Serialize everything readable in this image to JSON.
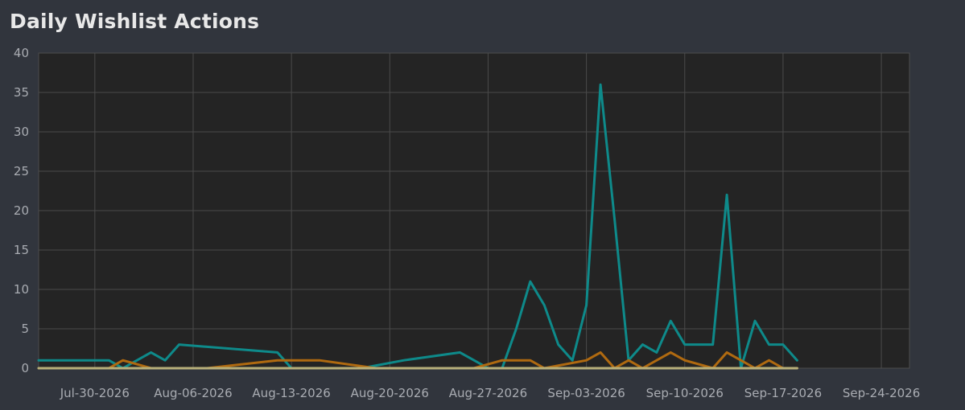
{
  "chart_data": {
    "type": "line",
    "title": "Daily Wishlist Actions",
    "xlabel": "",
    "ylabel": "",
    "x_ticks": [
      "Jul-30-2026",
      "Aug-06-2026",
      "Aug-13-2026",
      "Aug-20-2026",
      "Aug-27-2026",
      "Sep-03-2026",
      "Sep-10-2026",
      "Sep-17-2026",
      "Sep-24-2026"
    ],
    "y_ticks": [
      0,
      5,
      10,
      15,
      20,
      25,
      30,
      35,
      40
    ],
    "xlim": [
      "2026-07-26",
      "2026-09-26"
    ],
    "ylim": [
      0,
      40
    ],
    "grid": true,
    "legend": "none",
    "series": [
      {
        "color": "#0e8a8a",
        "points": [
          [
            "2026-07-26",
            1
          ],
          [
            "2026-07-27",
            1
          ],
          [
            "2026-07-28",
            1
          ],
          [
            "2026-07-29",
            1
          ],
          [
            "2026-07-30",
            1
          ],
          [
            "2026-07-31",
            1
          ],
          [
            "2026-08-01",
            0
          ],
          [
            "2026-08-02",
            1
          ],
          [
            "2026-08-03",
            2
          ],
          [
            "2026-08-04",
            1
          ],
          [
            "2026-08-05",
            3
          ],
          [
            "2026-08-12",
            2
          ],
          [
            "2026-08-13",
            0
          ],
          [
            "2026-08-18",
            0
          ],
          [
            "2026-08-21",
            1
          ],
          [
            "2026-08-25",
            2
          ],
          [
            "2026-08-26",
            1
          ],
          [
            "2026-08-27",
            0
          ],
          [
            "2026-08-28",
            0
          ],
          [
            "2026-08-29",
            5
          ],
          [
            "2026-08-30",
            11
          ],
          [
            "2026-08-31",
            8
          ],
          [
            "2026-09-01",
            3
          ],
          [
            "2026-09-02",
            1
          ],
          [
            "2026-09-03",
            8
          ],
          [
            "2026-09-04",
            36
          ],
          [
            "2026-09-05",
            19
          ],
          [
            "2026-09-06",
            1
          ],
          [
            "2026-09-07",
            3
          ],
          [
            "2026-09-08",
            2
          ],
          [
            "2026-09-09",
            6
          ],
          [
            "2026-09-10",
            3
          ],
          [
            "2026-09-11",
            3
          ],
          [
            "2026-09-12",
            3
          ],
          [
            "2026-09-13",
            22
          ],
          [
            "2026-09-14",
            0
          ],
          [
            "2026-09-15",
            6
          ],
          [
            "2026-09-16",
            3
          ],
          [
            "2026-09-17",
            3
          ],
          [
            "2026-09-18",
            1
          ]
        ]
      },
      {
        "color": "#b06a10",
        "points": [
          [
            "2026-07-26",
            0
          ],
          [
            "2026-07-31",
            0
          ],
          [
            "2026-08-01",
            1
          ],
          [
            "2026-08-02",
            0.5
          ],
          [
            "2026-08-03",
            0
          ],
          [
            "2026-08-07",
            0
          ],
          [
            "2026-08-12",
            1
          ],
          [
            "2026-08-15",
            1
          ],
          [
            "2026-08-19",
            0
          ],
          [
            "2026-08-26",
            0
          ],
          [
            "2026-08-28",
            1
          ],
          [
            "2026-08-30",
            1
          ],
          [
            "2026-08-31",
            0
          ],
          [
            "2026-09-03",
            1
          ],
          [
            "2026-09-04",
            2
          ],
          [
            "2026-09-05",
            0
          ],
          [
            "2026-09-06",
            1
          ],
          [
            "2026-09-07",
            0
          ],
          [
            "2026-09-09",
            2
          ],
          [
            "2026-09-10",
            1
          ],
          [
            "2026-09-12",
            0
          ],
          [
            "2026-09-13",
            2
          ],
          [
            "2026-09-14",
            1
          ],
          [
            "2026-09-15",
            0
          ],
          [
            "2026-09-16",
            1
          ],
          [
            "2026-09-17",
            0
          ],
          [
            "2026-09-18",
            0
          ]
        ]
      },
      {
        "color": "#b8b07a",
        "points": [
          [
            "2026-07-26",
            0
          ],
          [
            "2026-09-18",
            0
          ]
        ]
      }
    ]
  }
}
